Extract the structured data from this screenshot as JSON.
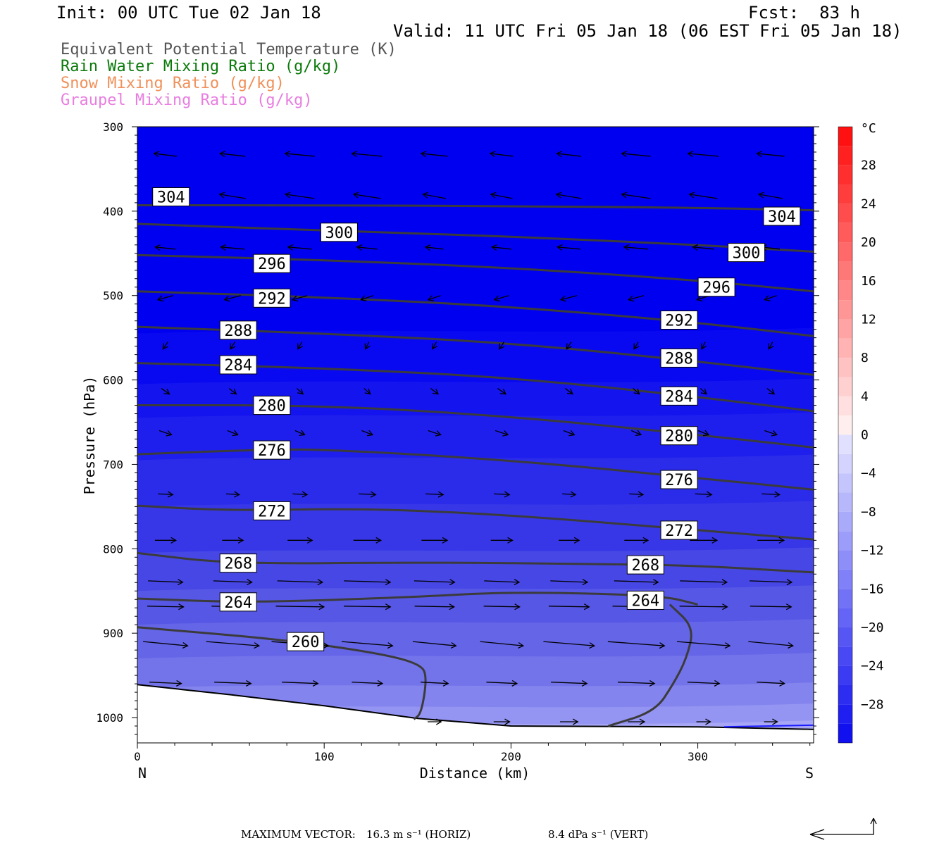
{
  "header": {
    "init": "Init: 00 UTC Tue 02 Jan 18",
    "fcst": "Fcst:  83 h",
    "valid": "Valid: 11 UTC Fri 05 Jan 18 (06 EST Fri 05 Jan 18)"
  },
  "legend": [
    {
      "label": "Equivalent Potential Temperature (K)",
      "color": "#555555"
    },
    {
      "label": "Rain Water Mixing Ratio (g/kg)",
      "color": "#0a7a0a"
    },
    {
      "label": "Snow Mixing Ratio (g/kg)",
      "color": "#f0905a"
    },
    {
      "label": "Graupel Mixing Ratio (g/kg)",
      "color": "#e87ee0"
    }
  ],
  "footer": {
    "max_vector_label": "MAXIMUM VECTOR:",
    "horiz": "16.3 m s⁻¹ (HORIZ)",
    "vert": "8.4 dPa s⁻¹ (VERT)"
  },
  "chart_data": {
    "type": "contour",
    "xlabel": "Distance (km)",
    "ylabel": "Pressure (hPa)",
    "xlim": [
      0,
      362
    ],
    "ylim": [
      1030,
      300
    ],
    "x_ticks": [
      0,
      100,
      200,
      300
    ],
    "y_ticks": [
      300,
      400,
      500,
      600,
      700,
      800,
      900,
      1000
    ],
    "left_endpoint": "N",
    "right_endpoint": "S",
    "colorbar": {
      "unit": "°C",
      "ticks": [
        28,
        24,
        20,
        16,
        12,
        8,
        4,
        0,
        -4,
        -8,
        -12,
        -16,
        -20,
        -24,
        -28
      ],
      "range": [
        -32,
        32
      ]
    },
    "theta_e_contours": [
      {
        "value": 304,
        "points": [
          [
            0,
            393
          ],
          [
            100,
            393
          ],
          [
            200,
            394
          ],
          [
            300,
            396
          ],
          [
            362,
            399
          ]
        ],
        "labels": [
          [
            18,
            383
          ],
          [
            345,
            406
          ]
        ]
      },
      {
        "value": 300,
        "points": [
          [
            0,
            415
          ],
          [
            100,
            423
          ],
          [
            200,
            430
          ],
          [
            300,
            440
          ],
          [
            362,
            448
          ]
        ],
        "labels": [
          [
            108,
            425
          ],
          [
            326,
            449
          ]
        ]
      },
      {
        "value": 296,
        "points": [
          [
            0,
            452
          ],
          [
            100,
            458
          ],
          [
            200,
            467
          ],
          [
            300,
            482
          ],
          [
            362,
            495
          ]
        ],
        "labels": [
          [
            72,
            462
          ],
          [
            310,
            490
          ]
        ]
      },
      {
        "value": 292,
        "points": [
          [
            0,
            495
          ],
          [
            100,
            502
          ],
          [
            200,
            513
          ],
          [
            300,
            532
          ],
          [
            362,
            548
          ]
        ],
        "labels": [
          [
            72,
            503
          ],
          [
            290,
            529
          ]
        ]
      },
      {
        "value": 288,
        "points": [
          [
            0,
            537
          ],
          [
            100,
            545
          ],
          [
            200,
            556
          ],
          [
            300,
            578
          ],
          [
            362,
            594
          ]
        ],
        "labels": [
          [
            54,
            541
          ],
          [
            290,
            574
          ]
        ]
      },
      {
        "value": 284,
        "points": [
          [
            0,
            580
          ],
          [
            100,
            586
          ],
          [
            200,
            597
          ],
          [
            300,
            620
          ],
          [
            362,
            637
          ]
        ],
        "labels": [
          [
            54,
            582
          ],
          [
            290,
            619
          ]
        ]
      },
      {
        "value": 280,
        "points": [
          [
            0,
            630
          ],
          [
            100,
            630
          ],
          [
            200,
            643
          ],
          [
            300,
            665
          ],
          [
            362,
            680
          ]
        ],
        "labels": [
          [
            72,
            630
          ],
          [
            290,
            666
          ]
        ]
      },
      {
        "value": 276,
        "points": [
          [
            0,
            688
          ],
          [
            60,
            683
          ],
          [
            100,
            682
          ],
          [
            200,
            695
          ],
          [
            300,
            716
          ],
          [
            362,
            730
          ]
        ],
        "labels": [
          [
            72,
            683
          ],
          [
            290,
            718
          ]
        ]
      },
      {
        "value": 272,
        "points": [
          [
            0,
            749
          ],
          [
            50,
            755
          ],
          [
            120,
            752
          ],
          [
            200,
            760
          ],
          [
            300,
            778
          ],
          [
            362,
            789
          ]
        ],
        "labels": [
          [
            72,
            755
          ],
          [
            290,
            778
          ]
        ]
      },
      {
        "value": 268,
        "points": [
          [
            0,
            805
          ],
          [
            50,
            818
          ],
          [
            150,
            816
          ],
          [
            250,
            818
          ],
          [
            300,
            820
          ],
          [
            362,
            828
          ]
        ],
        "labels": [
          [
            54,
            817
          ],
          [
            272,
            819
          ]
        ]
      },
      {
        "value": 264,
        "points": [
          [
            0,
            859
          ],
          [
            60,
            864
          ],
          [
            150,
            857
          ],
          [
            200,
            851
          ],
          [
            280,
            855
          ],
          [
            300,
            866
          ]
        ],
        "labels": [
          [
            54,
            863
          ],
          [
            272,
            861
          ]
        ]
      },
      {
        "value": 260,
        "points": [
          [
            0,
            893
          ],
          [
            80,
            908
          ],
          [
            130,
            924
          ],
          [
            152,
            937
          ],
          [
            155,
            953
          ],
          [
            152,
            995
          ],
          [
            148,
            1002
          ]
        ],
        "labels": [
          [
            90,
            910
          ],
          []
        ]
      },
      {
        "value": 264,
        "points": [
          [
            285,
            866
          ],
          [
            298,
            893
          ],
          [
            294,
            930
          ],
          [
            287,
            960
          ],
          [
            277,
            993
          ],
          [
            252,
            1010
          ]
        ],
        "labels": []
      }
    ],
    "surface_pressure": [
      [
        0,
        961
      ],
      [
        50,
        973
      ],
      [
        100,
        986
      ],
      [
        150,
        1001
      ],
      [
        200,
        1010
      ],
      [
        300,
        1011
      ],
      [
        362,
        1014
      ]
    ],
    "rain_water_trace": [
      [
        314,
        1011
      ],
      [
        362,
        1009
      ]
    ]
  }
}
